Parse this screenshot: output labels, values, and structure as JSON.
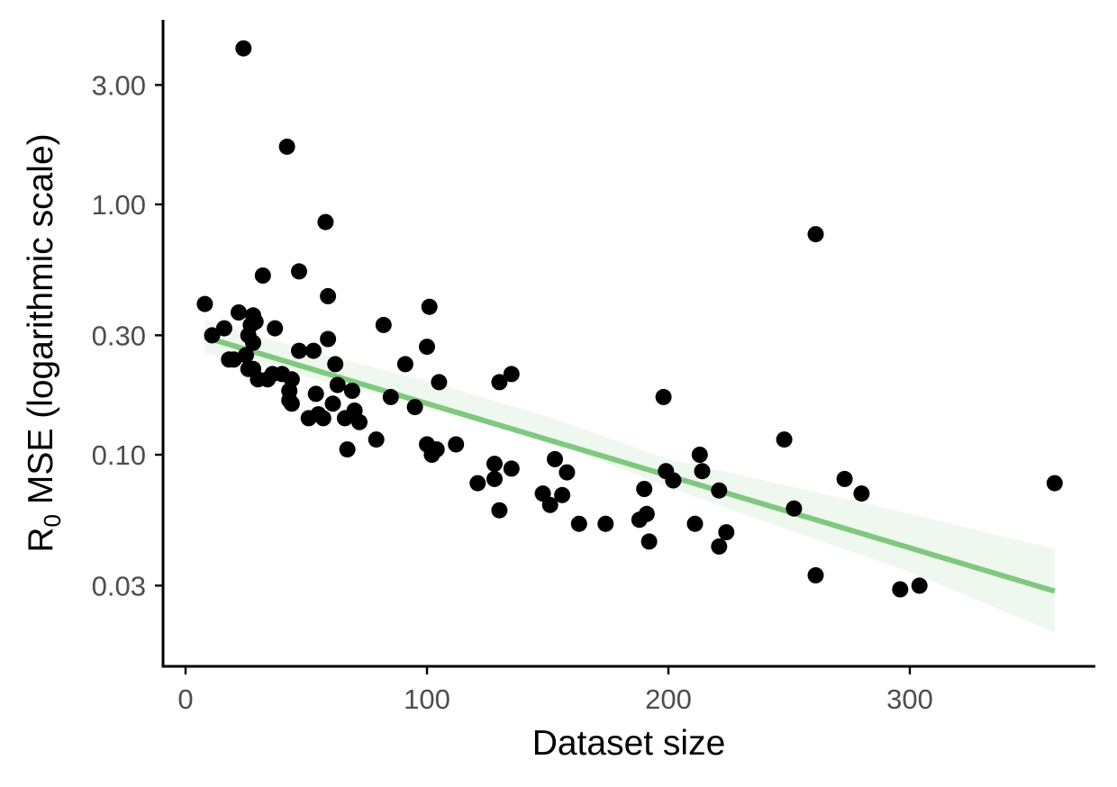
{
  "chart_data": {
    "type": "scatter",
    "title": "",
    "xlabel": "Dataset size",
    "ylabel": "R0 MSE (logarithmic scale)",
    "ylabel_parts": {
      "main": "R",
      "sub": "0",
      "rest": " MSE (logarithmic scale)"
    },
    "y_scale": "log",
    "xlim": [
      -10,
      377
    ],
    "ylim": [
      0.0165,
      5.6
    ],
    "x_ticks": [
      0,
      100,
      200,
      300
    ],
    "x_tick_labels": [
      "0",
      "100",
      "200",
      "300"
    ],
    "y_ticks": [
      0.03,
      0.1,
      0.3,
      1,
      3
    ],
    "y_tick_labels": [
      "0.03",
      "0.10",
      "0.30",
      "1.00",
      "3.00"
    ],
    "grid": false,
    "legend": "none",
    "point_color": "#000000",
    "fit_color": "#7fc97f",
    "band_color": "#edf7ed",
    "points": [
      [
        8,
        0.4
      ],
      [
        11,
        0.3
      ],
      [
        16,
        0.32
      ],
      [
        18,
        0.24
      ],
      [
        20,
        0.24
      ],
      [
        22,
        0.37
      ],
      [
        24,
        4.2
      ],
      [
        25,
        0.25
      ],
      [
        26,
        0.22
      ],
      [
        26,
        0.3
      ],
      [
        27,
        0.33
      ],
      [
        28,
        0.36
      ],
      [
        28,
        0.22
      ],
      [
        28,
        0.28
      ],
      [
        29,
        0.34
      ],
      [
        30,
        0.2
      ],
      [
        32,
        0.52
      ],
      [
        34,
        0.2
      ],
      [
        36,
        0.21
      ],
      [
        37,
        0.32
      ],
      [
        40,
        0.21
      ],
      [
        42,
        1.7
      ],
      [
        43,
        0.18
      ],
      [
        43,
        0.165
      ],
      [
        44,
        0.2
      ],
      [
        44,
        0.16
      ],
      [
        47,
        0.26
      ],
      [
        47,
        0.54
      ],
      [
        51,
        0.14
      ],
      [
        53,
        0.26
      ],
      [
        54,
        0.175
      ],
      [
        55,
        0.145
      ],
      [
        57,
        0.14
      ],
      [
        58,
        0.85
      ],
      [
        59,
        0.43
      ],
      [
        59,
        0.29
      ],
      [
        61,
        0.16
      ],
      [
        62,
        0.23
      ],
      [
        63,
        0.19
      ],
      [
        66,
        0.14
      ],
      [
        67,
        0.105
      ],
      [
        69,
        0.18
      ],
      [
        70,
        0.15
      ],
      [
        72,
        0.135
      ],
      [
        79,
        0.115
      ],
      [
        82,
        0.33
      ],
      [
        85,
        0.17
      ],
      [
        91,
        0.23
      ],
      [
        95,
        0.155
      ],
      [
        100,
        0.27
      ],
      [
        100,
        0.11
      ],
      [
        101,
        0.39
      ],
      [
        102,
        0.1
      ],
      [
        104,
        0.105
      ],
      [
        105,
        0.195
      ],
      [
        112,
        0.11
      ],
      [
        121,
        0.077
      ],
      [
        128,
        0.08
      ],
      [
        128,
        0.092
      ],
      [
        130,
        0.195
      ],
      [
        130,
        0.06
      ],
      [
        135,
        0.21
      ],
      [
        135,
        0.088
      ],
      [
        148,
        0.07
      ],
      [
        151,
        0.063
      ],
      [
        153,
        0.096
      ],
      [
        156,
        0.069
      ],
      [
        158,
        0.085
      ],
      [
        163,
        0.053
      ],
      [
        174,
        0.053
      ],
      [
        188,
        0.055
      ],
      [
        190,
        0.073
      ],
      [
        191,
        0.058
      ],
      [
        192,
        0.045
      ],
      [
        198,
        0.17
      ],
      [
        199,
        0.086
      ],
      [
        202,
        0.079
      ],
      [
        211,
        0.053
      ],
      [
        213,
        0.1
      ],
      [
        214,
        0.086
      ],
      [
        221,
        0.072
      ],
      [
        221,
        0.043
      ],
      [
        224,
        0.049
      ],
      [
        248,
        0.115
      ],
      [
        252,
        0.061
      ],
      [
        261,
        0.76
      ],
      [
        261,
        0.033
      ],
      [
        273,
        0.08
      ],
      [
        280,
        0.07
      ],
      [
        296,
        0.029
      ],
      [
        304,
        0.03
      ],
      [
        360,
        0.077
      ]
    ],
    "fit_line": {
      "x": [
        8,
        360
      ],
      "y": [
        0.295,
        0.0285
      ]
    },
    "confidence_band": {
      "x": [
        8,
        50,
        100,
        150,
        200,
        250,
        300,
        360
      ],
      "lower": [
        0.255,
        0.205,
        0.155,
        0.115,
        0.074,
        0.05,
        0.034,
        0.0195
      ],
      "upper": [
        0.345,
        0.262,
        0.197,
        0.142,
        0.096,
        0.075,
        0.058,
        0.042
      ]
    }
  }
}
